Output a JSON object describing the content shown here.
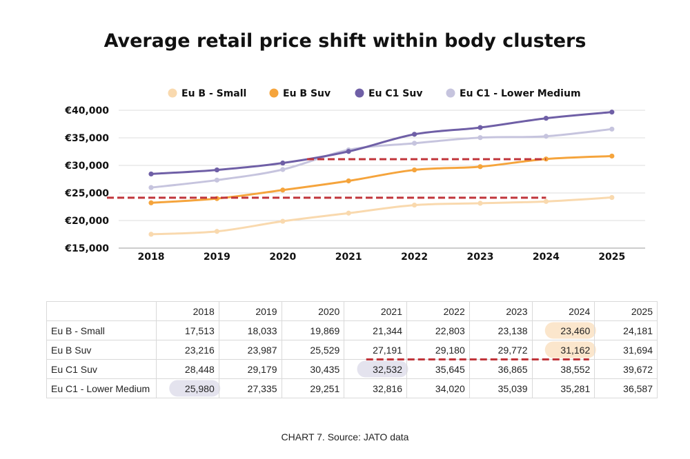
{
  "title": "Average retail price shift within body clusters",
  "source": "CHART 7. Source: JATO data",
  "chart_data": {
    "type": "line",
    "title": "Average retail price shift within body clusters",
    "categories": [
      "2018",
      "2019",
      "2020",
      "2021",
      "2022",
      "2023",
      "2024",
      "2025"
    ],
    "ylim": [
      15000,
      40000
    ],
    "yticks": [
      15000,
      20000,
      25000,
      30000,
      35000,
      40000
    ],
    "ytick_labels": [
      "€15,000",
      "€20,000",
      "€25,000",
      "€30,000",
      "€35,000",
      "€40,000"
    ],
    "xlabel": "",
    "ylabel": "",
    "legend_position": "top",
    "grid": true,
    "series": [
      {
        "name": "Eu B - Small",
        "color": "#f9d9ae",
        "values": [
          17513,
          18033,
          19869,
          21344,
          22803,
          23138,
          23460,
          24181
        ]
      },
      {
        "name": "Eu B Suv",
        "color": "#f5a43c",
        "values": [
          23216,
          23987,
          25529,
          27191,
          29180,
          29772,
          31162,
          31694
        ]
      },
      {
        "name": "Eu C1 Suv",
        "color": "#6f5fa6",
        "values": [
          28448,
          29179,
          30435,
          32532,
          35645,
          36865,
          38552,
          39672
        ]
      },
      {
        "name": "Eu C1 - Lower Medium",
        "color": "#c6c4de",
        "values": [
          25980,
          27335,
          29251,
          32816,
          34020,
          35039,
          35281,
          36587
        ]
      }
    ],
    "annotations": [
      {
        "type": "dashed-reference",
        "color": "#c0343a",
        "value": 23460,
        "from": "before 2018",
        "to": "2024"
      },
      {
        "type": "dashed-reference",
        "color": "#c0343a",
        "value": 31000,
        "from": "2020",
        "to": "2024"
      }
    ]
  },
  "table": {
    "headers": [
      "",
      "2018",
      "2019",
      "2020",
      "2021",
      "2022",
      "2023",
      "2024",
      "2025"
    ],
    "rows": [
      {
        "label": "Eu B - Small",
        "cells": [
          "17,513",
          "18,033",
          "19,869",
          "21,344",
          "22,803",
          "23,138",
          "23,460",
          "24,181"
        ]
      },
      {
        "label": "Eu B Suv",
        "cells": [
          "23,216",
          "23,987",
          "25,529",
          "27,191",
          "29,180",
          "29,772",
          "31,162",
          "31,694"
        ]
      },
      {
        "label": "Eu C1 Suv",
        "cells": [
          "28,448",
          "29,179",
          "30,435",
          "32,532",
          "35,645",
          "36,865",
          "38,552",
          "39,672"
        ]
      },
      {
        "label": "Eu C1 - Lower Medium",
        "cells": [
          "25,980",
          "27,335",
          "29,251",
          "32,816",
          "34,020",
          "35,039",
          "35,281",
          "36,587"
        ]
      }
    ],
    "highlights": [
      {
        "row": 0,
        "col": 6,
        "color": "#fbe6cc"
      },
      {
        "row": 1,
        "col": 6,
        "color": "#fbe6cc"
      },
      {
        "row": 2,
        "col": 3,
        "color": "#e4e3ee"
      },
      {
        "row": 3,
        "col": 0,
        "color": "#e4e3ee"
      }
    ],
    "dash_color": "#c0343a"
  }
}
